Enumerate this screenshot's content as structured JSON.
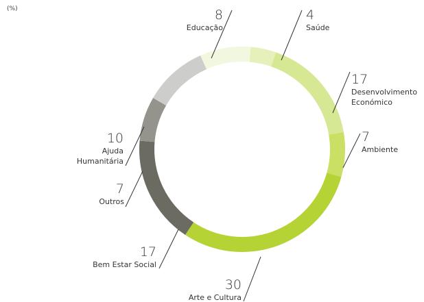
{
  "chart_data": {
    "type": "donut",
    "unit": "(%)",
    "categories": [
      "Educação",
      "Saúde",
      "Desenvolvimento Económico",
      "Ambiente",
      "Arte e Cultura",
      "Bem Estar Social",
      "Outros",
      "Ajuda Humanitária"
    ],
    "values": [
      8,
      4,
      17,
      7,
      30,
      17,
      7,
      10
    ],
    "colors": [
      "#f2f7e0",
      "#e5f0bb",
      "#d7e894",
      "#c9e065",
      "#b5d334",
      "#6b6b62",
      "#94948d",
      "#cdcdcb"
    ]
  }
}
